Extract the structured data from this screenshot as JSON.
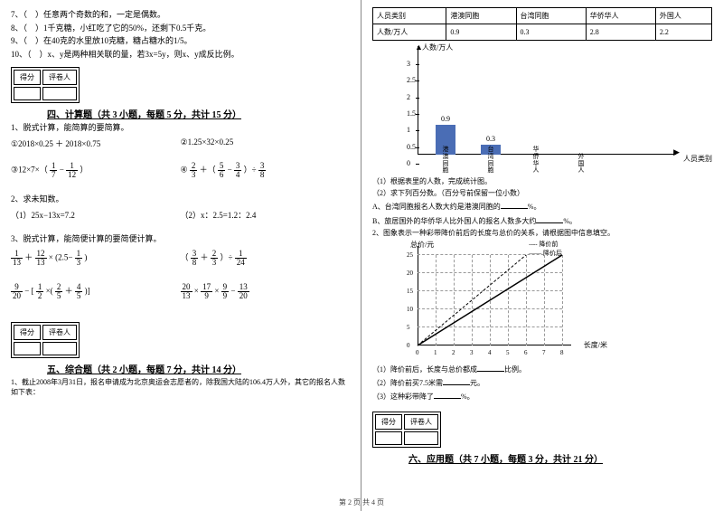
{
  "left": {
    "tf": [
      "7、（　）任意两个奇数的和，一定是偶数。",
      "8、（　）1千克糖，小红吃了它的50%，还剩下0.5千克。",
      "9、（　）在40克的水里放10克糖，糖占糖水的1/5。",
      "10、（　）x、y是两种相关联的量，若3x=5y，则x、y成反比例。"
    ],
    "score_labels": {
      "a": "得分",
      "b": "评卷人"
    },
    "sec4_title": "四、计算题（共 3 小题，每题 5 分，共计 15 分）",
    "calc1_intro": "1、脱式计算，能简算的要简算。",
    "calc1_a": "①2018×0.25 ＋ 2018×0.75",
    "calc1_b": "②1.25×32×0.25",
    "calc1_c_pre": "③12×7×（",
    "calc1_c_f1n": "1",
    "calc1_c_f1d": "7",
    "calc1_c_mid": " − ",
    "calc1_c_f2n": "1",
    "calc1_c_f2d": "12",
    "calc1_c_post": "）",
    "calc1_d_f1n": "2",
    "calc1_d_f1d": "3",
    "calc1_d_mid1": " ＋（",
    "calc1_d_f2n": "5",
    "calc1_d_f2d": "6",
    "calc1_d_mid2": " − ",
    "calc1_d_f3n": "3",
    "calc1_d_f3d": "4",
    "calc1_d_mid3": "）÷ ",
    "calc1_d_f4n": "3",
    "calc1_d_f4d": "8",
    "calc1_d_pre": "④",
    "calc2_intro": "2、求未知数。",
    "calc2_a": "（1）25x−13x=7.2",
    "calc2_b": "（2）x：2.5=1.2：2.4",
    "calc3_intro": "3、脱式计算，能简便计算的要简便计算。",
    "c3a_f1n": "1",
    "c3a_f1d": "13",
    "c3a_plus": "＋",
    "c3a_f2n": "12",
    "c3a_f2d": "13",
    "c3a_times": "×",
    "c3a_open": "(",
    "c3a_v": "2.5−",
    "c3a_f3n": "1",
    "c3a_f3d": "3",
    "c3a_close": ")",
    "c3b_open": "（",
    "c3b_f1n": "3",
    "c3b_f1d": "8",
    "c3b_plus": " ＋ ",
    "c3b_f2n": "2",
    "c3b_f2d": "3",
    "c3b_close": "）÷ ",
    "c3b_f3n": "1",
    "c3b_f3d": "24",
    "c3c_f1n": "9",
    "c3c_f1d": "20",
    "c3c_minus": " − ",
    "c3c_open": "[",
    "c3c_f2n": "1",
    "c3c_f2d": "2",
    "c3c_times": "×(",
    "c3c_f3n": "2",
    "c3c_f3d": "5",
    "c3c_plus": "＋",
    "c3c_f4n": "4",
    "c3c_f4d": "5",
    "c3c_close": ")]",
    "c3d_f1n": "20",
    "c3d_f1d": "13",
    "c3d_t1": "×",
    "c3d_f2n": "17",
    "c3d_f2d": "9",
    "c3d_t2": "×",
    "c3d_f3n": "9",
    "c3d_f3d": "9",
    "c3d_minus": " − ",
    "c3d_f4n": "13",
    "c3d_f4d": "20",
    "sec5_title": "五、综合题（共 2 小题，每题 7 分，共计 14 分）",
    "comp1": "1、截止2008年3月31日，报名申请成为北京奥运会志愿者的，除我国大陆的106.4万人外，其它的报名人数如下表："
  },
  "right": {
    "table_headers": [
      "人员类别",
      "港澳同胞",
      "台湾同胞",
      "华侨华人",
      "外国人"
    ],
    "table_row_label": "人数/万人",
    "table_values": [
      "0.9",
      "0.3",
      "2.8",
      "2.2"
    ],
    "chart": {
      "y_title": "人数/万人",
      "ticks": [
        "0",
        "0.5",
        "1",
        "1.5",
        "2",
        "2.5",
        "3"
      ],
      "bars": [
        {
          "label": "港澳同胞",
          "value": 0.9,
          "text": "0.9"
        },
        {
          "label": "台湾同胞",
          "value": 0.3,
          "text": "0.3"
        },
        {
          "label": "华侨华人",
          "value": null,
          "text": ""
        },
        {
          "label": "外国人",
          "value": null,
          "text": ""
        }
      ],
      "x_title": "人员类别",
      "bar_color": "#4a6db5"
    },
    "q1_1": "（1）根据表里的人数，完成统计图。",
    "q1_2": "（2）求下列百分数。（百分号前保留一位小数）",
    "q1_a": "A、台湾同胞报名人数大约是港澳同胞的",
    "q1_a_suf": "%。",
    "q1_b": "B、旅居国外的华侨华人比外国人的报名人数多大约",
    "q1_b_suf": "%。",
    "q2_intro": "2、图象表示一种彩带降价前后的长度与总价的关系，请根据图中信息填空。",
    "legend_a": "---- 降价前",
    "legend_b": "—— 降价后",
    "lc": {
      "y_title": "总价/元",
      "x_title": "长度/米",
      "y_ticks": [
        "0",
        "5",
        "10",
        "15",
        "20",
        "25"
      ],
      "x_ticks": [
        "0",
        "1",
        "2",
        "3",
        "4",
        "5",
        "6",
        "7",
        "8"
      ]
    },
    "q2_1": "（1）降价前后，长度与总价都成",
    "q2_1_suf": "比例。",
    "q2_2": "（2）降价前买7.5米需",
    "q2_2_suf": "元。",
    "q2_3": "（3）这种彩带降了",
    "q2_3_suf": "%。",
    "sec6_title": "六、应用题（共 7 小题，每题 3 分，共计 21 分）"
  },
  "footer": "第 2 页 共 4 页"
}
